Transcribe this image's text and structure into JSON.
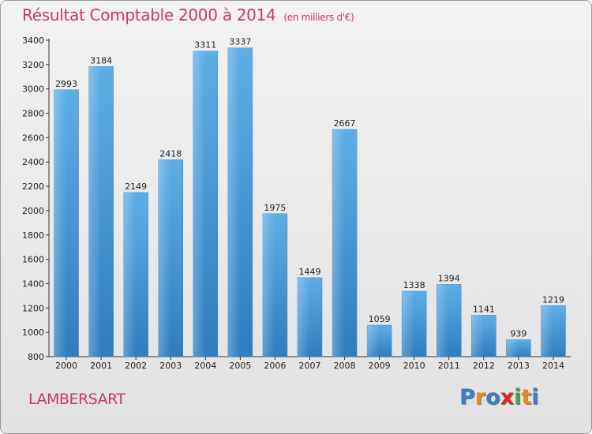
{
  "header": {
    "title": "Résultat Comptable 2000 à 2014",
    "subtitle": "(en milliers d'€)"
  },
  "footer": {
    "town": "LAMBERSART",
    "logo_letters": [
      "P",
      "r",
      "o",
      "x",
      "i",
      "t",
      "i"
    ],
    "logo_colors": [
      "#3a7dc9",
      "#e98a1c",
      "#3a7dc9",
      "#d8262f",
      "#3ea84a",
      "#e98a1c",
      "#3a7dc9"
    ]
  },
  "chart_data": {
    "type": "bar",
    "title": "Résultat Comptable 2000 à 2014",
    "subtitle": "(en milliers d'€)",
    "categories": [
      "2000",
      "2001",
      "2002",
      "2003",
      "2004",
      "2005",
      "2006",
      "2007",
      "2008",
      "2009",
      "2010",
      "2011",
      "2012",
      "2013",
      "2014"
    ],
    "values": [
      2993,
      3184,
      2149,
      2418,
      3311,
      3337,
      1975,
      1449,
      2667,
      1059,
      1338,
      1394,
      1141,
      939,
      1219
    ],
    "yticks": [
      800,
      1000,
      1200,
      1400,
      1600,
      1800,
      2000,
      2200,
      2400,
      2600,
      2800,
      3000,
      3200,
      3400
    ],
    "ylim": [
      800,
      3400
    ],
    "grid": false,
    "bar_color": "#4d9fdc",
    "data_labels": true
  }
}
